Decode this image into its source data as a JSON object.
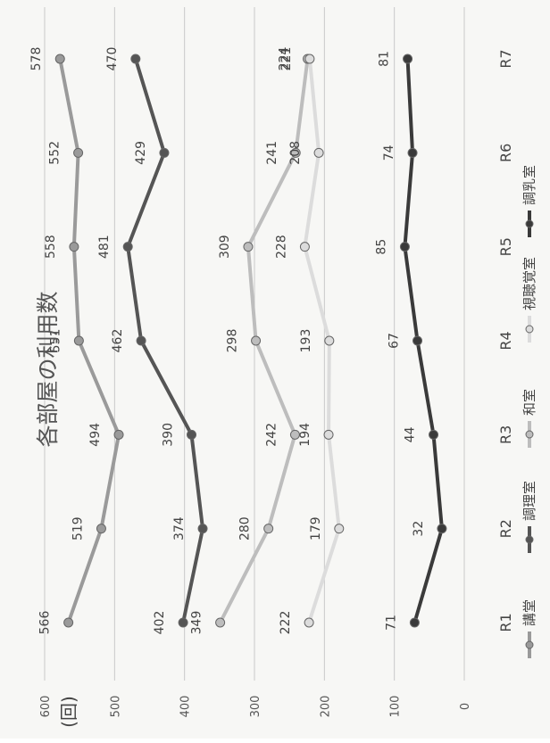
{
  "chart_data": {
    "type": "line",
    "title": "各部屋の利用数",
    "unit_label": "(回)",
    "categories": [
      "R1",
      "R2",
      "R3",
      "R4",
      "R5",
      "R6",
      "R7"
    ],
    "ylim": [
      0,
      600
    ],
    "yticks": [
      0,
      100,
      200,
      300,
      400,
      500,
      600
    ],
    "grid": true,
    "legend_position": "bottom",
    "series": [
      {
        "name": "講堂",
        "color": "#9a9a9a",
        "values": [
          566,
          519,
          494,
          551,
          558,
          552,
          578
        ]
      },
      {
        "name": "調理室",
        "color": "#555555",
        "values": [
          402,
          374,
          390,
          462,
          481,
          429,
          470
        ]
      },
      {
        "name": "和室",
        "color": "#bdbdbd",
        "values": [
          349,
          280,
          242,
          298,
          309,
          241,
          224
        ]
      },
      {
        "name": "視聴覚室",
        "color": "#dcdcdc",
        "values": [
          222,
          179,
          194,
          193,
          228,
          208,
          221
        ]
      },
      {
        "name": "調乳室",
        "color": "#3a3a3a",
        "values": [
          71,
          32,
          44,
          67,
          85,
          74,
          81
        ]
      }
    ]
  }
}
